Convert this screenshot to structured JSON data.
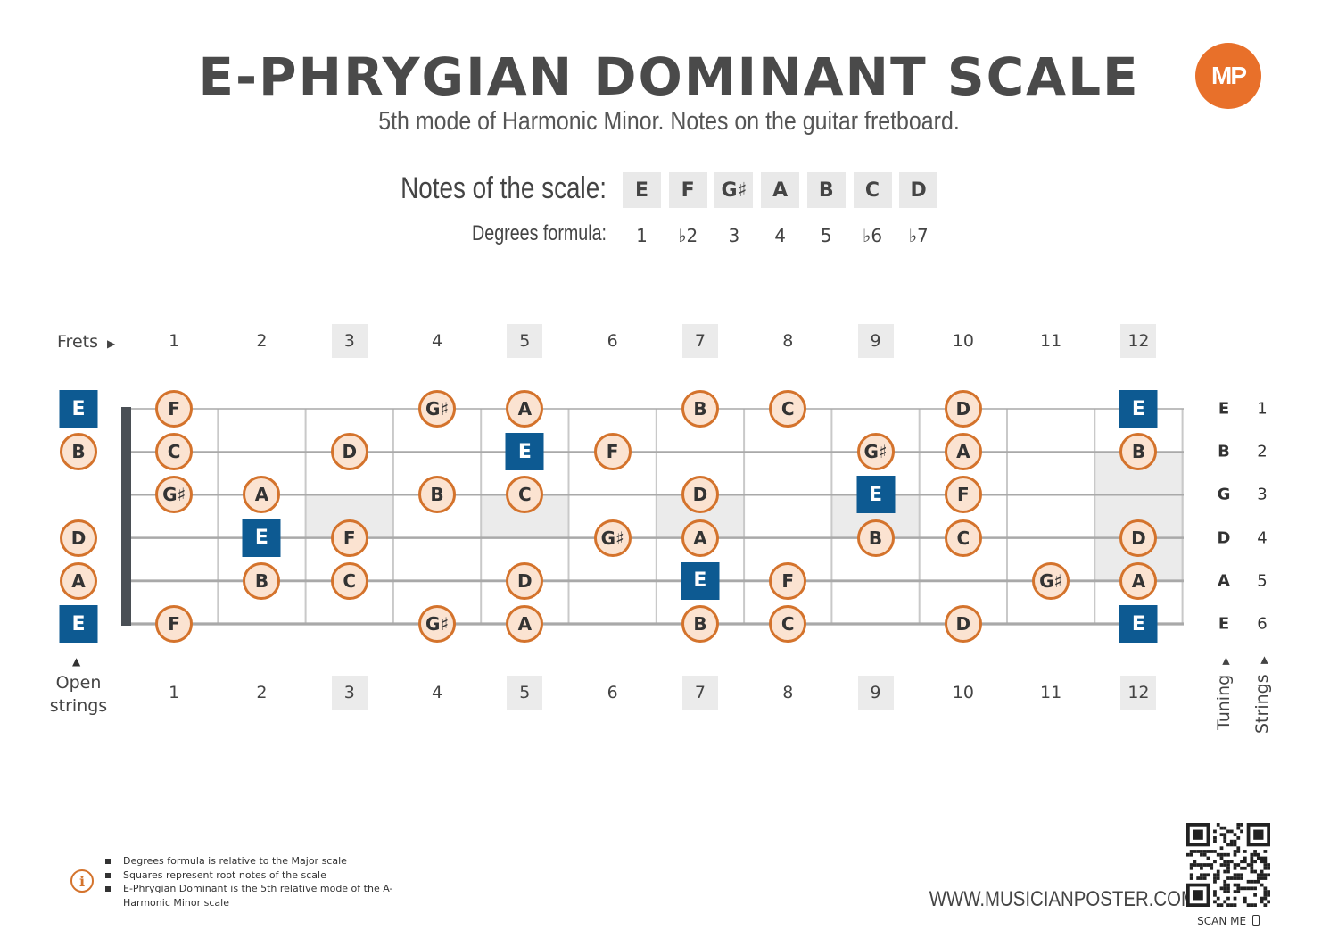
{
  "header": {
    "title": "E-PHRYGIAN DOMINANT SCALE",
    "subtitle": "5th mode of Harmonic Minor. Notes on the guitar fretboard.",
    "logo_text": "MP",
    "accent_color": "#e8702a"
  },
  "scale": {
    "notes_label": "Notes of the scale:",
    "degrees_label": "Degrees formula:",
    "notes": [
      "E",
      "F",
      "G♯",
      "A",
      "B",
      "C",
      "D"
    ],
    "degrees": [
      "1",
      "♭2",
      "3",
      "4",
      "5",
      "♭6",
      "♭7"
    ]
  },
  "fretboard": {
    "frets_label": "Frets",
    "fret_numbers": [
      "1",
      "2",
      "3",
      "4",
      "5",
      "6",
      "7",
      "8",
      "9",
      "10",
      "11",
      "12"
    ],
    "marker_frets": [
      3,
      5,
      7,
      9,
      12
    ],
    "strings": [
      {
        "number": "1",
        "tuning": "E",
        "open": "E",
        "open_root": true,
        "frets": [
          "F",
          "",
          "",
          "G♯",
          "A",
          "",
          "B",
          "C",
          "",
          "D",
          "",
          "E"
        ]
      },
      {
        "number": "2",
        "tuning": "B",
        "open": "B",
        "open_root": false,
        "frets": [
          "C",
          "",
          "D",
          "",
          "E",
          "F",
          "",
          "",
          "G♯",
          "A",
          "",
          "B"
        ]
      },
      {
        "number": "3",
        "tuning": "G",
        "open": "",
        "open_root": false,
        "frets": [
          "G♯",
          "A",
          "",
          "B",
          "C",
          "",
          "D",
          "",
          "E",
          "F",
          "",
          ""
        ]
      },
      {
        "number": "4",
        "tuning": "D",
        "open": "D",
        "open_root": false,
        "frets": [
          "",
          "E",
          "F",
          "",
          "",
          "G♯",
          "A",
          "",
          "B",
          "C",
          "",
          "D"
        ]
      },
      {
        "number": "5",
        "tuning": "A",
        "open": "A",
        "open_root": false,
        "frets": [
          "",
          "B",
          "C",
          "",
          "D",
          "",
          "E",
          "F",
          "",
          "",
          "G♯",
          "A"
        ]
      },
      {
        "number": "6",
        "tuning": "E",
        "open": "E",
        "open_root": true,
        "frets": [
          "F",
          "",
          "",
          "G♯",
          "A",
          "",
          "B",
          "C",
          "",
          "D",
          "",
          "E"
        ]
      }
    ],
    "root_note": "E",
    "open_strings_label": [
      "Open",
      "strings"
    ],
    "tuning_label": "Tuning",
    "strings_label": "Strings",
    "colors": {
      "root": "#0d5a92",
      "note_fill": "#fbe3d1",
      "note_border": "#d4732c",
      "marker": "#ebebeb"
    }
  },
  "footer": {
    "info_icon": "info-icon",
    "notes": [
      "Degrees formula is relative to the Major scale",
      "Squares represent root notes of the scale",
      "E-Phrygian Dominant is the 5th relative mode of the A-Harmonic Minor scale"
    ],
    "website": "WWW.MUSICIANPOSTER.COM",
    "scan_me": "SCAN ME"
  }
}
